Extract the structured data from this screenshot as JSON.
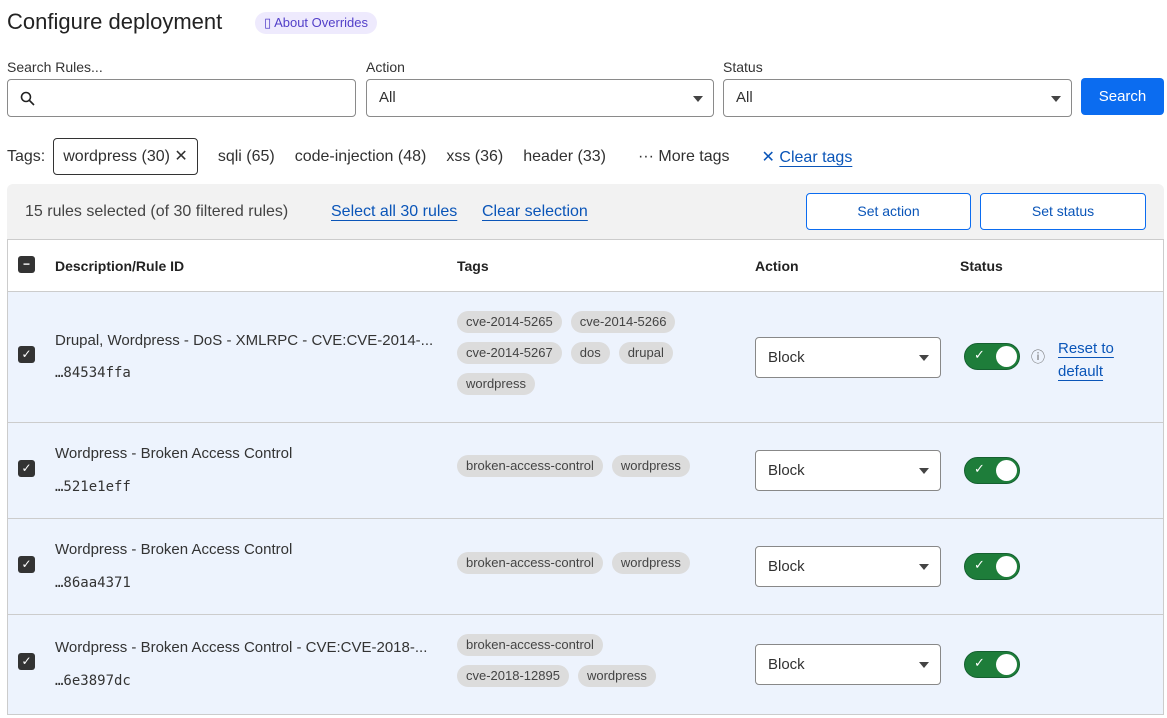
{
  "header": {
    "title": "Configure deployment",
    "about_label": "About Overrides"
  },
  "filters": {
    "search_label": "Search Rules...",
    "search_value": "",
    "action_label": "Action",
    "action_value": "All",
    "status_label": "Status",
    "status_value": "All",
    "search_button": "Search"
  },
  "tags": {
    "label": "Tags:",
    "selected": "wordpress (30)",
    "options": [
      "sqli (65)",
      "code-injection (48)",
      "xss (36)",
      "header (33)"
    ],
    "more": "More tags",
    "clear": "Clear tags"
  },
  "selection": {
    "summary": "15 rules selected (of 30 filtered rules)",
    "select_all": "Select all 30 rules",
    "clear": "Clear selection",
    "set_action": "Set action",
    "set_status": "Set status"
  },
  "table": {
    "columns": [
      "Description/Rule ID",
      "Tags",
      "Action",
      "Status"
    ],
    "rows": [
      {
        "description": "Drupal, Wordpress - DoS - XMLRPC - CVE:CVE-2014-...",
        "id": "…84534ffa",
        "tags": [
          "cve-2014-5265",
          "cve-2014-5266",
          "cve-2014-5267",
          "dos",
          "drupal",
          "wordpress"
        ],
        "action": "Block",
        "enabled": true,
        "reset": "Reset to default",
        "checked": true
      },
      {
        "description": "Wordpress - Broken Access Control",
        "id": "…521e1eff",
        "tags": [
          "broken-access-control",
          "wordpress"
        ],
        "action": "Block",
        "enabled": true,
        "checked": true
      },
      {
        "description": "Wordpress - Broken Access Control",
        "id": "…86aa4371",
        "tags": [
          "broken-access-control",
          "wordpress"
        ],
        "action": "Block",
        "enabled": true,
        "checked": true
      },
      {
        "description": "Wordpress - Broken Access Control - CVE:CVE-2018-...",
        "id": "…6e3897dc",
        "tags": [
          "broken-access-control",
          "cve-2018-12895",
          "wordpress"
        ],
        "action": "Block",
        "enabled": true,
        "checked": true
      }
    ]
  },
  "colors": {
    "primary": "#0b6cf0",
    "toggle_on": "#1e7d3a",
    "row_selected": "#edf3fd"
  }
}
